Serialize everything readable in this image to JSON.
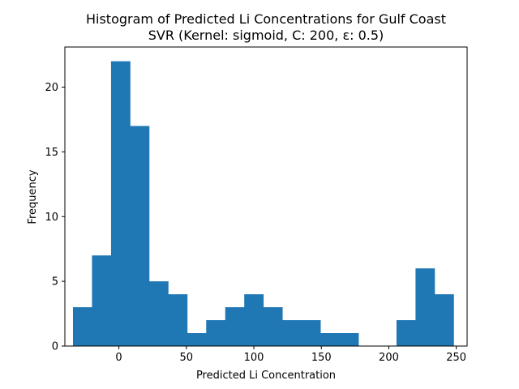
{
  "chart_data": {
    "type": "bar",
    "title": "Histogram of Predicted Li Concentrations for Gulf Coast",
    "subtitle": "SVR (Kernel: sigmoid, C: 200, ε: 0.5)",
    "xlabel": "Predicted Li Concentration",
    "ylabel": "Frequency",
    "xlim": [
      -40,
      258
    ],
    "ylim": [
      0,
      23.1
    ],
    "xticks": [
      0,
      50,
      100,
      150,
      200,
      250
    ],
    "yticks": [
      0,
      5,
      10,
      15,
      20
    ],
    "bar_color": "#1f77b4",
    "bins": [
      {
        "x0": -34.0,
        "x1": -19.9,
        "count": 3
      },
      {
        "x0": -19.9,
        "x1": -5.8,
        "count": 7
      },
      {
        "x0": -5.8,
        "x1": 8.3,
        "count": 22
      },
      {
        "x0": 8.3,
        "x1": 22.4,
        "count": 17
      },
      {
        "x0": 22.4,
        "x1": 36.5,
        "count": 5
      },
      {
        "x0": 36.5,
        "x1": 50.6,
        "count": 4
      },
      {
        "x0": 50.6,
        "x1": 64.7,
        "count": 1
      },
      {
        "x0": 64.7,
        "x1": 78.8,
        "count": 2
      },
      {
        "x0": 78.8,
        "x1": 92.9,
        "count": 3
      },
      {
        "x0": 92.9,
        "x1": 107.0,
        "count": 4
      },
      {
        "x0": 107.0,
        "x1": 121.1,
        "count": 3
      },
      {
        "x0": 121.1,
        "x1": 135.2,
        "count": 2
      },
      {
        "x0": 135.2,
        "x1": 149.3,
        "count": 2
      },
      {
        "x0": 149.3,
        "x1": 163.4,
        "count": 1
      },
      {
        "x0": 163.4,
        "x1": 177.5,
        "count": 1
      },
      {
        "x0": 177.5,
        "x1": 191.6,
        "count": 0
      },
      {
        "x0": 191.6,
        "x1": 205.7,
        "count": 0
      },
      {
        "x0": 205.7,
        "x1": 219.8,
        "count": 2
      },
      {
        "x0": 219.8,
        "x1": 233.9,
        "count": 6
      },
      {
        "x0": 233.9,
        "x1": 248.0,
        "count": 4
      }
    ]
  }
}
